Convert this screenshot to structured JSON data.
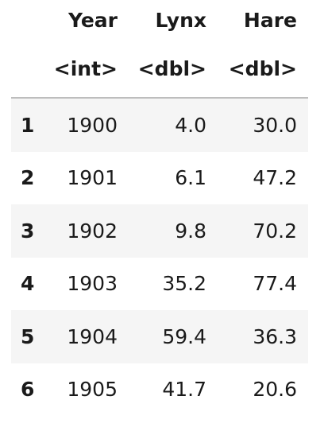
{
  "table": {
    "columns": [
      {
        "name": "Year",
        "type": "<int>"
      },
      {
        "name": "Lynx",
        "type": "<dbl>"
      },
      {
        "name": "Hare",
        "type": "<dbl>"
      }
    ],
    "rows": [
      {
        "index": "1",
        "year": "1900",
        "lynx": "4.0",
        "hare": "30.0"
      },
      {
        "index": "2",
        "year": "1901",
        "lynx": "6.1",
        "hare": "47.2"
      },
      {
        "index": "3",
        "year": "1902",
        "lynx": "9.8",
        "hare": "70.2"
      },
      {
        "index": "4",
        "year": "1903",
        "lynx": "35.2",
        "hare": "77.4"
      },
      {
        "index": "5",
        "year": "1904",
        "lynx": "59.4",
        "hare": "36.3"
      },
      {
        "index": "6",
        "year": "1905",
        "lynx": "41.7",
        "hare": "20.6"
      }
    ]
  },
  "colors": {
    "header_rule": "#bdbdbd",
    "stripe": "#f5f5f5",
    "text": "#1a1a1a"
  }
}
